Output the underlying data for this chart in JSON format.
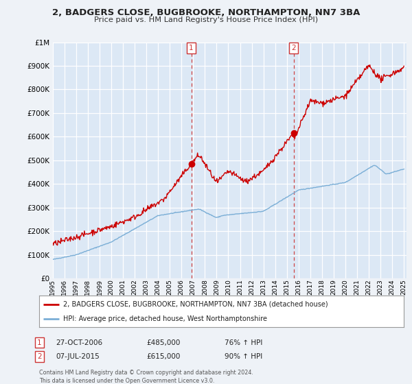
{
  "title": "2, BADGERS CLOSE, BUGBROOKE, NORTHAMPTON, NN7 3BA",
  "subtitle": "Price paid vs. HM Land Registry's House Price Index (HPI)",
  "bg_color": "#f0f4f8",
  "plot_bg_color": "#dce8f5",
  "sale1_price": 485000,
  "sale1_label": "27-OCT-2006",
  "sale1_pct": "76% ↑ HPI",
  "sale2_price": 615000,
  "sale2_label": "07-JUL-2015",
  "sale2_pct": "90% ↑ HPI",
  "legend_line1": "2, BADGERS CLOSE, BUGBROOKE, NORTHAMPTON, NN7 3BA (detached house)",
  "legend_line2": "HPI: Average price, detached house, West Northamptonshire",
  "footer": "Contains HM Land Registry data © Crown copyright and database right 2024.\nThis data is licensed under the Open Government Licence v3.0.",
  "red_color": "#cc0000",
  "blue_color": "#7aaed6",
  "vline_color": "#cc3333",
  "ylim_max": 1000000,
  "grid_color": "#c8d8e8"
}
